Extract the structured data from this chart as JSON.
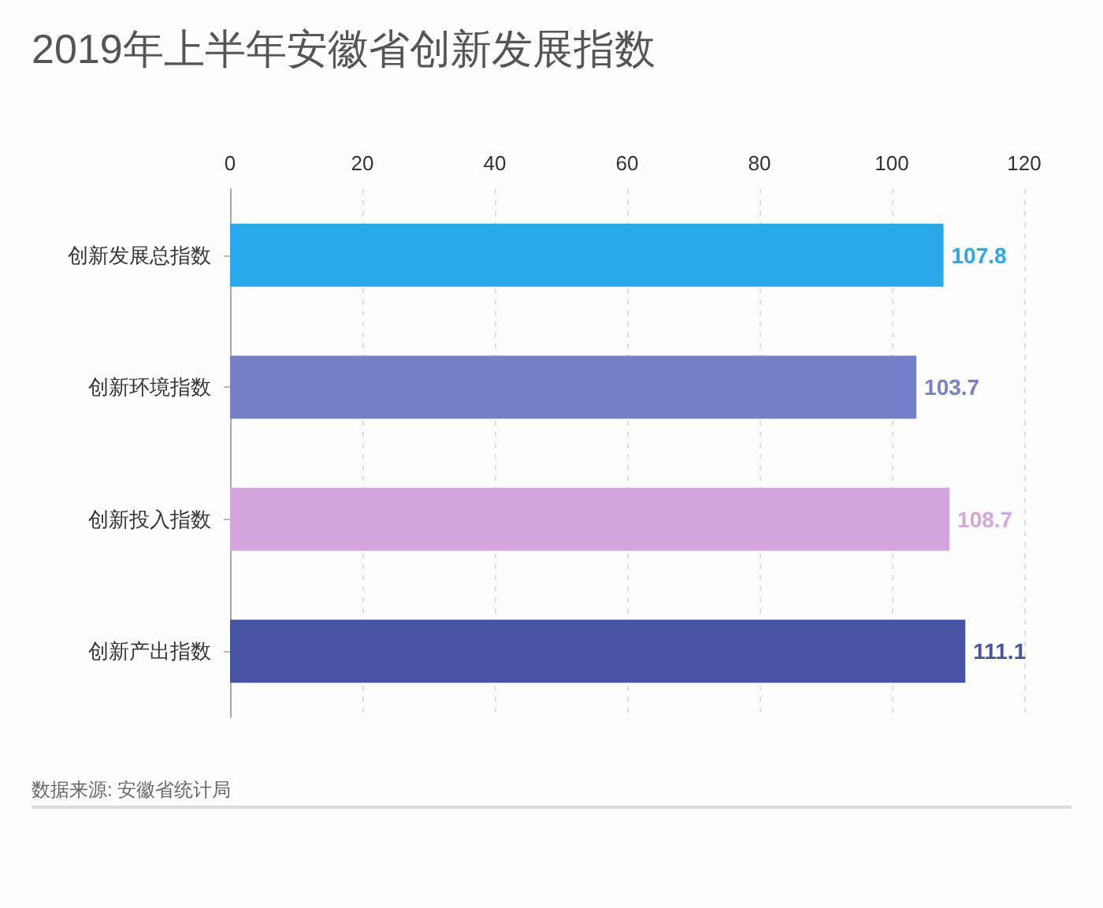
{
  "chart_data": {
    "type": "bar",
    "orientation": "horizontal",
    "title": "2019年上半年安徽省创新发展指数",
    "categories": [
      "创新发展总指数",
      "创新环境指数",
      "创新投入指数",
      "创新产出指数"
    ],
    "values": [
      107.8,
      103.7,
      108.7,
      111.1
    ],
    "colors": [
      "#29a9e8",
      "#7680c8",
      "#d5a6de",
      "#4753a3"
    ],
    "xlim": [
      0,
      120
    ],
    "xticks": [
      0,
      20,
      40,
      60,
      80,
      100,
      120
    ],
    "grid": "x",
    "data_labels": true,
    "annotations": [
      "数据来源: 安徽省统计局"
    ]
  }
}
